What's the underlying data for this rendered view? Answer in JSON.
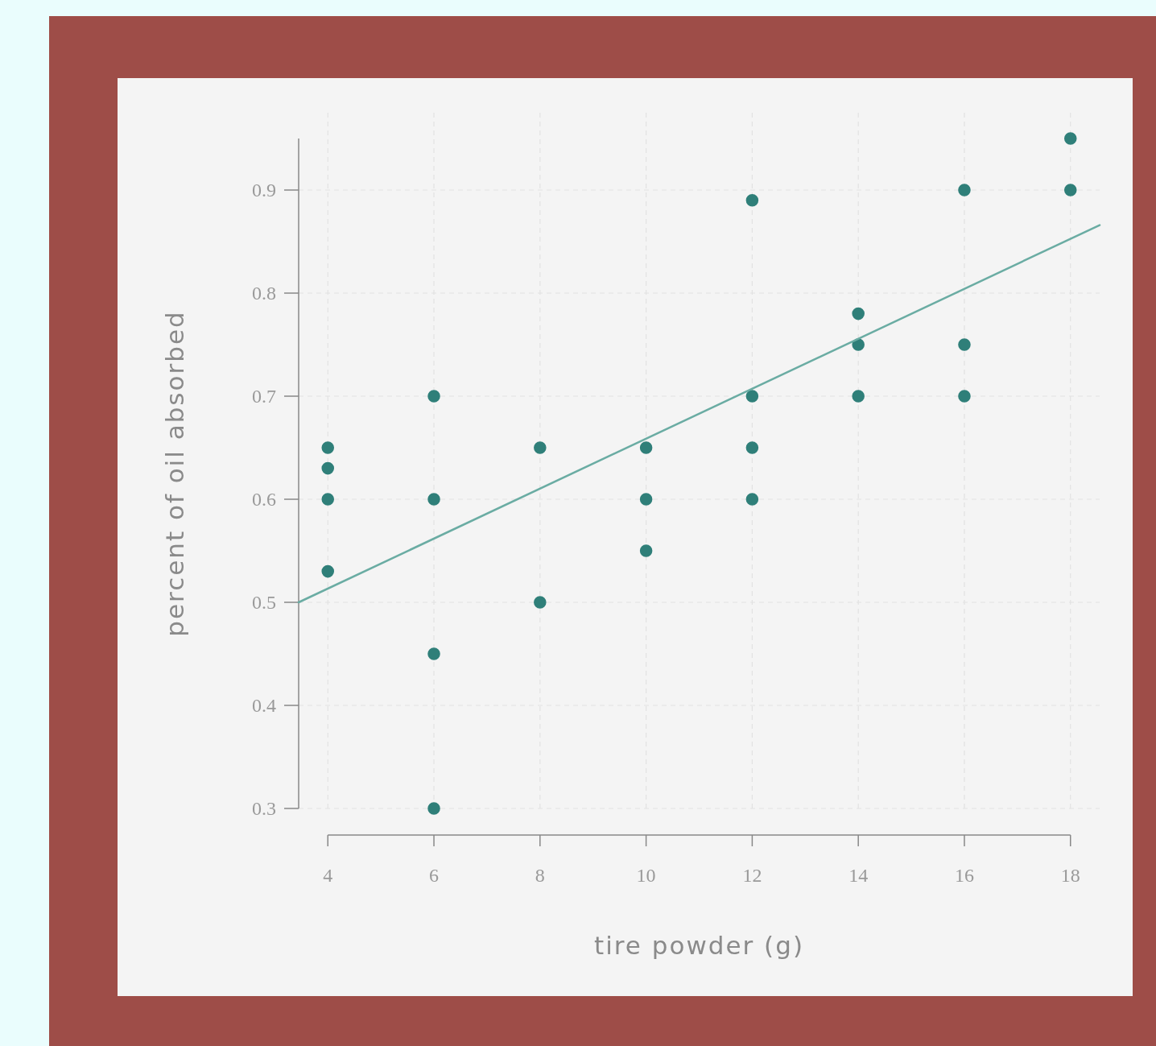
{
  "chart_data": {
    "type": "scatter",
    "xlabel": "tire powder (g)",
    "ylabel": "percent of oil absorbed",
    "xlim": [
      3.45,
      18.55
    ],
    "ylim": [
      0.3,
      0.95
    ],
    "xticks": [
      4,
      6,
      8,
      10,
      12,
      14,
      16,
      18
    ],
    "yticks": [
      0.3,
      0.4,
      0.5,
      0.6,
      0.7,
      0.8,
      0.9
    ],
    "grid": true,
    "marker": "circle",
    "series": [
      {
        "color": "#2f7f79",
        "x": [
          4,
          4,
          4,
          4,
          6,
          6,
          6,
          6,
          8,
          8,
          10,
          10,
          10,
          12,
          12,
          12,
          12,
          14,
          14,
          14,
          16,
          16,
          16,
          18,
          18
        ],
        "values": [
          0.65,
          0.63,
          0.6,
          0.53,
          0.7,
          0.6,
          0.45,
          0.3,
          0.65,
          0.5,
          0.65,
          0.6,
          0.55,
          0.89,
          0.7,
          0.65,
          0.6,
          0.78,
          0.75,
          0.7,
          0.9,
          0.75,
          0.7,
          0.95,
          0.9
        ]
      },
      {
        "type": "line",
        "color": "#6aaca3",
        "line_style": "solid",
        "marker": "none",
        "x": [
          3.45,
          18.55
        ],
        "values": [
          0.5,
          0.866
        ]
      }
    ]
  }
}
